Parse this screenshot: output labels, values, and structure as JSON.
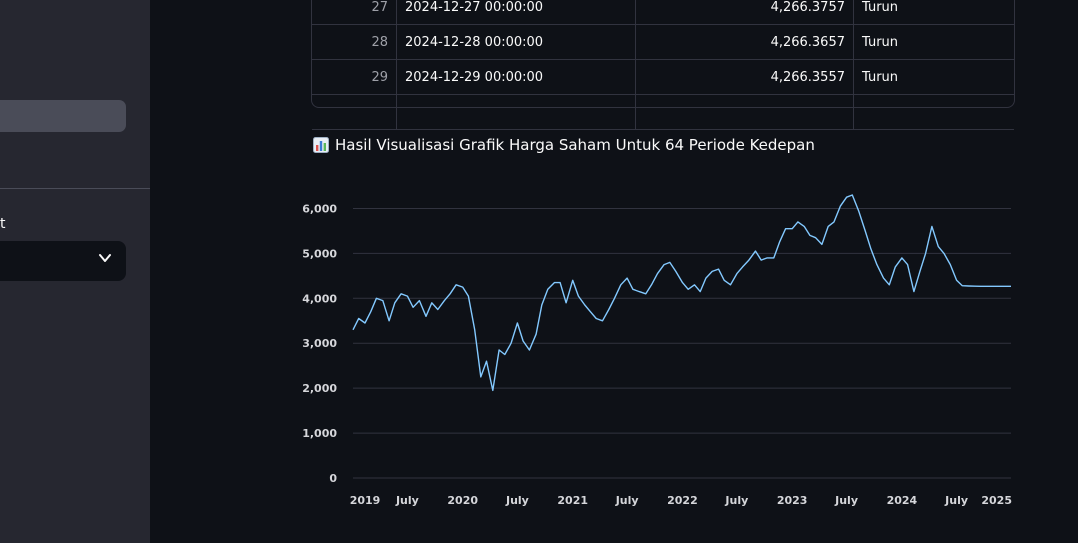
{
  "sidebar": {
    "select_label": "t",
    "select_icon": "chevron-down-icon"
  },
  "table": {
    "rows": [
      {
        "index": "27",
        "date": "2024-12-27 00:00:00",
        "value": "4,266.3757",
        "status": "Turun"
      },
      {
        "index": "28",
        "date": "2024-12-28 00:00:00",
        "value": "4,266.3657",
        "status": "Turun"
      },
      {
        "index": "29",
        "date": "2024-12-29 00:00:00",
        "value": "4,266.3557",
        "status": "Turun"
      }
    ]
  },
  "chart_section": {
    "icon": "bar-chart-emoji-icon",
    "title": "Hasil Visualisasi Grafik Harga Saham Untuk 64 Periode Kedepan"
  },
  "chart_data": {
    "type": "line",
    "title": "",
    "xlabel": "",
    "ylabel": "",
    "ylim": [
      0,
      6500
    ],
    "yticks": [
      {
        "v": 0,
        "label": "0"
      },
      {
        "v": 1000,
        "label": "1,000"
      },
      {
        "v": 2000,
        "label": "2,000"
      },
      {
        "v": 3000,
        "label": "3,000"
      },
      {
        "v": 4000,
        "label": "4,000"
      },
      {
        "v": 5000,
        "label": "5,000"
      },
      {
        "v": 6000,
        "label": "6,000"
      }
    ],
    "xlim": [
      "2019-01-01",
      "2024-12-29"
    ],
    "xticks": [
      {
        "d": "2019-01-01",
        "label": "2019"
      },
      {
        "d": "2019-07-01",
        "label": "July"
      },
      {
        "d": "2020-01-01",
        "label": "2020"
      },
      {
        "d": "2020-07-01",
        "label": "July"
      },
      {
        "d": "2021-01-01",
        "label": "2021"
      },
      {
        "d": "2021-07-01",
        "label": "July"
      },
      {
        "d": "2022-01-01",
        "label": "2022"
      },
      {
        "d": "2022-07-01",
        "label": "July"
      },
      {
        "d": "2023-01-01",
        "label": "2023"
      },
      {
        "d": "2023-07-01",
        "label": "July"
      },
      {
        "d": "2024-01-01",
        "label": "2024"
      },
      {
        "d": "2024-07-01",
        "label": "July"
      },
      {
        "d": "2024-12-29",
        "label": "2025"
      }
    ],
    "grid": true,
    "line_color": "#83c9ff",
    "series": [
      {
        "name": "",
        "x": [
          "2019-01-01",
          "2019-01-20",
          "2019-02-10",
          "2019-03-01",
          "2019-03-20",
          "2019-04-10",
          "2019-05-01",
          "2019-05-20",
          "2019-06-10",
          "2019-07-01",
          "2019-07-20",
          "2019-08-10",
          "2019-09-01",
          "2019-09-20",
          "2019-10-10",
          "2019-11-01",
          "2019-11-20",
          "2019-12-10",
          "2020-01-01",
          "2020-01-20",
          "2020-02-10",
          "2020-03-01",
          "2020-03-20",
          "2020-04-10",
          "2020-05-01",
          "2020-05-20",
          "2020-06-10",
          "2020-07-01",
          "2020-07-20",
          "2020-08-10",
          "2020-09-01",
          "2020-09-20",
          "2020-10-10",
          "2020-11-01",
          "2020-11-20",
          "2020-12-10",
          "2021-01-01",
          "2021-01-20",
          "2021-02-10",
          "2021-03-01",
          "2021-03-20",
          "2021-04-10",
          "2021-05-01",
          "2021-05-20",
          "2021-06-10",
          "2021-07-01",
          "2021-07-20",
          "2021-08-10",
          "2021-09-01",
          "2021-09-20",
          "2021-10-10",
          "2021-11-01",
          "2021-11-20",
          "2021-12-10",
          "2022-01-01",
          "2022-01-20",
          "2022-02-10",
          "2022-03-01",
          "2022-03-20",
          "2022-04-10",
          "2022-05-01",
          "2022-05-20",
          "2022-06-10",
          "2022-07-01",
          "2022-07-20",
          "2022-08-10",
          "2022-09-01",
          "2022-09-20",
          "2022-10-10",
          "2022-11-01",
          "2022-11-20",
          "2022-12-10",
          "2023-01-01",
          "2023-01-20",
          "2023-02-10",
          "2023-03-01",
          "2023-03-20",
          "2023-04-10",
          "2023-05-01",
          "2023-05-20",
          "2023-06-10",
          "2023-07-01",
          "2023-07-20",
          "2023-08-10",
          "2023-09-01",
          "2023-09-20",
          "2023-10-10",
          "2023-11-01",
          "2023-11-20",
          "2023-12-10",
          "2024-01-01",
          "2024-01-20",
          "2024-02-10",
          "2024-03-01",
          "2024-03-20",
          "2024-04-10",
          "2024-05-01",
          "2024-05-20",
          "2024-06-10",
          "2024-07-01",
          "2024-07-20",
          "2024-08-10",
          "2024-09-01",
          "2024-09-20",
          "2024-10-10",
          "2024-10-25",
          "2024-11-10",
          "2024-11-25",
          "2024-12-10",
          "2024-12-29"
        ],
        "values": [
          3300,
          3550,
          3450,
          3700,
          4000,
          3950,
          3500,
          3900,
          4100,
          4050,
          3800,
          3950,
          3600,
          3900,
          3750,
          3950,
          4100,
          4300,
          4250,
          4050,
          3300,
          2250,
          2600,
          1950,
          2850,
          2750,
          3000,
          3450,
          3050,
          2850,
          3200,
          3850,
          4200,
          4350,
          4350,
          3900,
          4400,
          4050,
          3850,
          3700,
          3550,
          3500,
          3750,
          4000,
          4300,
          4450,
          4200,
          4150,
          4100,
          4300,
          4550,
          4750,
          4800,
          4600,
          4350,
          4200,
          4300,
          4150,
          4450,
          4600,
          4650,
          4400,
          4300,
          4550,
          4700,
          4850,
          5050,
          4850,
          4900,
          4900,
          5250,
          5550,
          5550,
          5700,
          5600,
          5400,
          5350,
          5200,
          5600,
          5700,
          6050,
          6250,
          6300,
          5950,
          5500,
          5100,
          4750,
          4450,
          4300,
          4700,
          4900,
          4750,
          4150,
          4600,
          5000,
          5600,
          5150,
          5000,
          4750,
          4400,
          4280,
          4275,
          4270,
          4268,
          4266.39,
          4266.38,
          4266.37,
          4266.37,
          4266.36,
          4266.36
        ]
      }
    ]
  }
}
